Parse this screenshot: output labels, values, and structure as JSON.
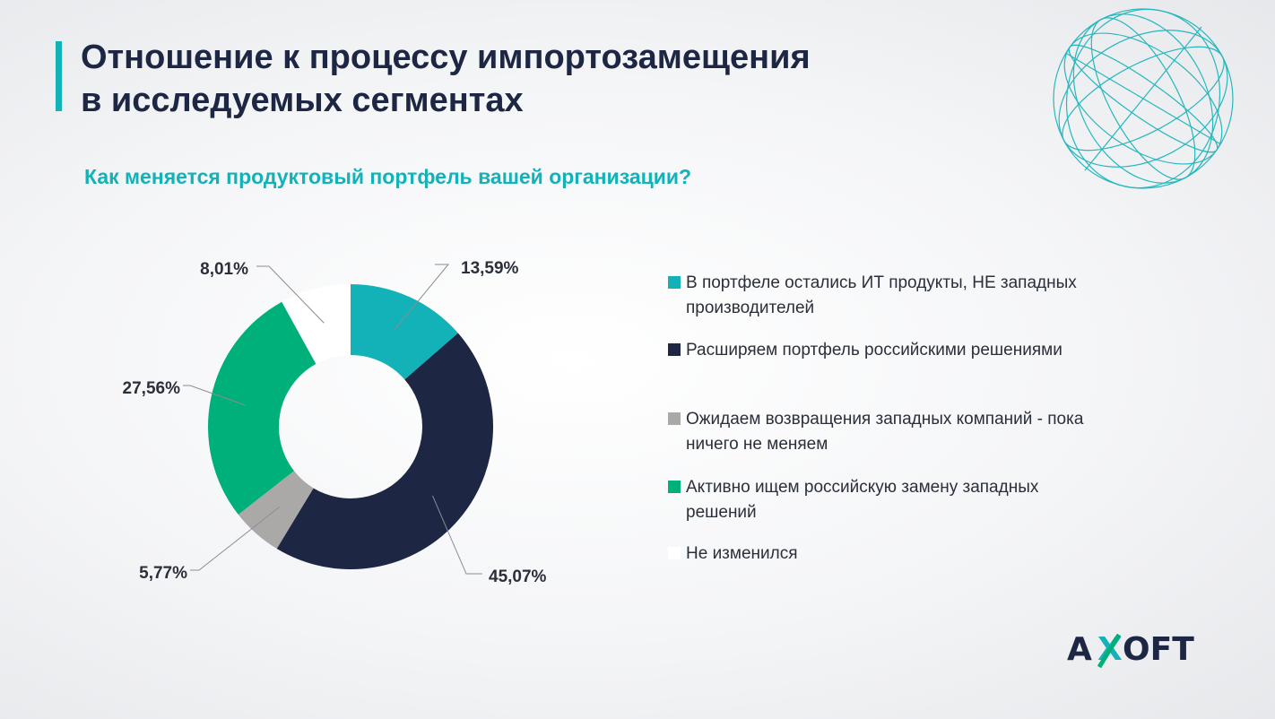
{
  "slide": {
    "title_line1": "Отношение к процессу импортозамещения",
    "title_line2": "в исследуемых сегментах",
    "subtitle": "Как меняется продуктовый портфель вашей организации?"
  },
  "logo": {
    "text_left": "A",
    "text_x": "X",
    "text_right": "OFT"
  },
  "colors": {
    "teal": "#12b2b8",
    "navy": "#1d2744",
    "gray": "#aba9a8",
    "green": "#00b07a",
    "white": "#ffffff"
  },
  "chart_data": {
    "type": "pie",
    "style": "donut",
    "title": "Как меняется продуктовый портфель вашей организации?",
    "legend_position": "right",
    "slices": [
      {
        "label": "В портфеле остались ИТ продукты, НЕ западных производителей",
        "value": 13.59,
        "value_label": "13,59%",
        "color": "#12b2b8"
      },
      {
        "label": "Расширяем портфель российскими решениями",
        "value": 45.07,
        "value_label": "45,07%",
        "color": "#1d2744"
      },
      {
        "label": "Ожидаем возвращения западных компаний - пока ничего не меняем",
        "value": 5.77,
        "value_label": "5,77%",
        "color": "#aba9a8"
      },
      {
        "label": "Активно ищем российскую замену западных решений",
        "value": 27.56,
        "value_label": "27,56%",
        "color": "#00b07a"
      },
      {
        "label": "Не изменился",
        "value": 8.01,
        "value_label": "8,01%",
        "color": "#ffffff"
      }
    ]
  }
}
